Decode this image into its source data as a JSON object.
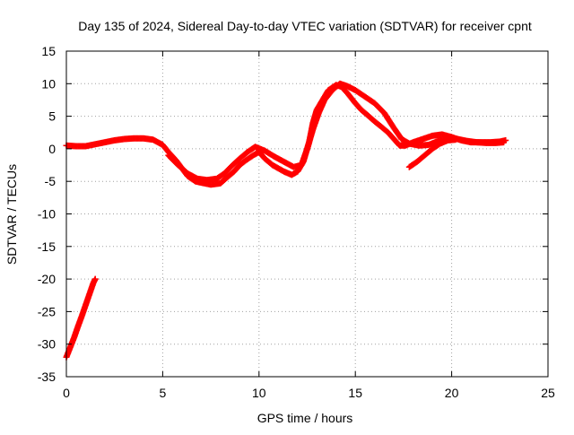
{
  "chart_data": {
    "type": "scatter",
    "title": "Day 135 of 2024, Sidereal Day-to-day VTEC variation (SDTVAR) for receiver cpnt",
    "xlabel": "GPS time / hours",
    "ylabel": "SDTVAR / TECUs",
    "xlim": [
      0,
      25
    ],
    "ylim": [
      -35,
      15
    ],
    "xticks": [
      0,
      5,
      10,
      15,
      20,
      25
    ],
    "yticks": [
      -35,
      -30,
      -25,
      -20,
      -15,
      -10,
      -5,
      0,
      5,
      10,
      15
    ],
    "grid": true,
    "marker": "+",
    "color": "#ff0000",
    "series": [
      {
        "name": "main-band",
        "points": [
          [
            0.0,
            0.5
          ],
          [
            0.5,
            0.4
          ],
          [
            1.0,
            0.4
          ],
          [
            1.5,
            0.7
          ],
          [
            2.0,
            1.0
          ],
          [
            2.5,
            1.3
          ],
          [
            3.0,
            1.5
          ],
          [
            3.5,
            1.6
          ],
          [
            4.0,
            1.6
          ],
          [
            4.5,
            1.4
          ],
          [
            5.0,
            0.6
          ],
          [
            5.3,
            -0.5
          ],
          [
            5.7,
            -1.8
          ],
          [
            6.0,
            -3.0
          ],
          [
            6.3,
            -4.2
          ],
          [
            6.7,
            -5.0
          ],
          [
            7.0,
            -5.2
          ],
          [
            7.5,
            -5.5
          ],
          [
            8.0,
            -5.3
          ],
          [
            8.3,
            -4.5
          ],
          [
            8.7,
            -3.5
          ],
          [
            9.0,
            -2.5
          ],
          [
            9.3,
            -1.8
          ],
          [
            9.7,
            -1.0
          ],
          [
            10.0,
            -0.5
          ],
          [
            10.3,
            -1.5
          ],
          [
            10.7,
            -2.5
          ],
          [
            11.0,
            -3.0
          ],
          [
            11.3,
            -3.5
          ],
          [
            11.7,
            -4.0
          ],
          [
            12.0,
            -3.5
          ],
          [
            12.3,
            -2.0
          ],
          [
            12.6,
            1.0
          ],
          [
            12.8,
            4.0
          ],
          [
            13.0,
            6.0
          ],
          [
            13.3,
            7.5
          ],
          [
            13.6,
            9.0
          ],
          [
            14.0,
            9.8
          ],
          [
            14.3,
            9.5
          ],
          [
            14.6,
            8.5
          ],
          [
            15.0,
            7.0
          ],
          [
            15.3,
            6.0
          ],
          [
            15.7,
            5.0
          ],
          [
            16.0,
            4.2
          ],
          [
            16.3,
            3.5
          ],
          [
            16.7,
            2.5
          ],
          [
            17.0,
            1.5
          ],
          [
            17.3,
            0.5
          ],
          [
            17.6,
            0.5
          ],
          [
            18.0,
            1.0
          ],
          [
            18.5,
            1.5
          ],
          [
            19.0,
            2.0
          ],
          [
            19.5,
            2.2
          ],
          [
            20.0,
            1.8
          ],
          [
            20.5,
            1.3
          ],
          [
            21.0,
            1.0
          ],
          [
            21.5,
            1.0
          ],
          [
            22.0,
            1.0
          ],
          [
            22.5,
            1.1
          ],
          [
            22.8,
            1.3
          ]
        ]
      },
      {
        "name": "secondary-band",
        "points": [
          [
            5.3,
            -1.0
          ],
          [
            5.8,
            -2.5
          ],
          [
            6.3,
            -3.8
          ],
          [
            6.8,
            -4.6
          ],
          [
            7.3,
            -4.8
          ],
          [
            7.8,
            -4.6
          ],
          [
            8.2,
            -3.8
          ],
          [
            8.6,
            -2.6
          ],
          [
            9.0,
            -1.5
          ],
          [
            9.4,
            -0.5
          ],
          [
            9.8,
            0.3
          ],
          [
            10.3,
            -0.3
          ],
          [
            10.8,
            -1.2
          ],
          [
            11.3,
            -2.0
          ],
          [
            11.8,
            -2.8
          ],
          [
            12.2,
            -2.5
          ],
          [
            12.5,
            0.0
          ],
          [
            12.8,
            3.0
          ],
          [
            13.1,
            5.5
          ],
          [
            13.4,
            7.5
          ],
          [
            13.8,
            9.0
          ],
          [
            14.2,
            10.0
          ],
          [
            14.6,
            9.6
          ],
          [
            15.0,
            9.0
          ],
          [
            15.5,
            8.0
          ],
          [
            16.0,
            7.0
          ],
          [
            16.5,
            5.5
          ],
          [
            17.0,
            3.2
          ],
          [
            17.4,
            1.5
          ],
          [
            17.8,
            0.8
          ],
          [
            18.3,
            0.5
          ],
          [
            18.8,
            0.6
          ],
          [
            19.3,
            1.2
          ],
          [
            19.8,
            1.6
          ],
          [
            20.3,
            1.5
          ],
          [
            20.8,
            1.2
          ],
          [
            21.3,
            1.0
          ],
          [
            21.8,
            0.9
          ],
          [
            22.3,
            0.9
          ],
          [
            22.7,
            1.0
          ]
        ]
      },
      {
        "name": "short-arc-evening",
        "points": [
          [
            17.8,
            -2.8
          ],
          [
            18.2,
            -2.0
          ],
          [
            18.6,
            -1.0
          ],
          [
            19.0,
            0.0
          ],
          [
            19.4,
            0.8
          ],
          [
            19.8,
            1.3
          ],
          [
            20.2,
            1.4
          ]
        ]
      },
      {
        "name": "arc-start",
        "points": [
          [
            0.0,
            -32.0
          ],
          [
            0.2,
            -30.5
          ],
          [
            0.4,
            -29.0
          ],
          [
            0.6,
            -27.3
          ],
          [
            0.8,
            -25.7
          ],
          [
            1.0,
            -24.0
          ],
          [
            1.2,
            -22.3
          ],
          [
            1.4,
            -20.6
          ],
          [
            1.5,
            -20.0
          ]
        ]
      }
    ]
  }
}
